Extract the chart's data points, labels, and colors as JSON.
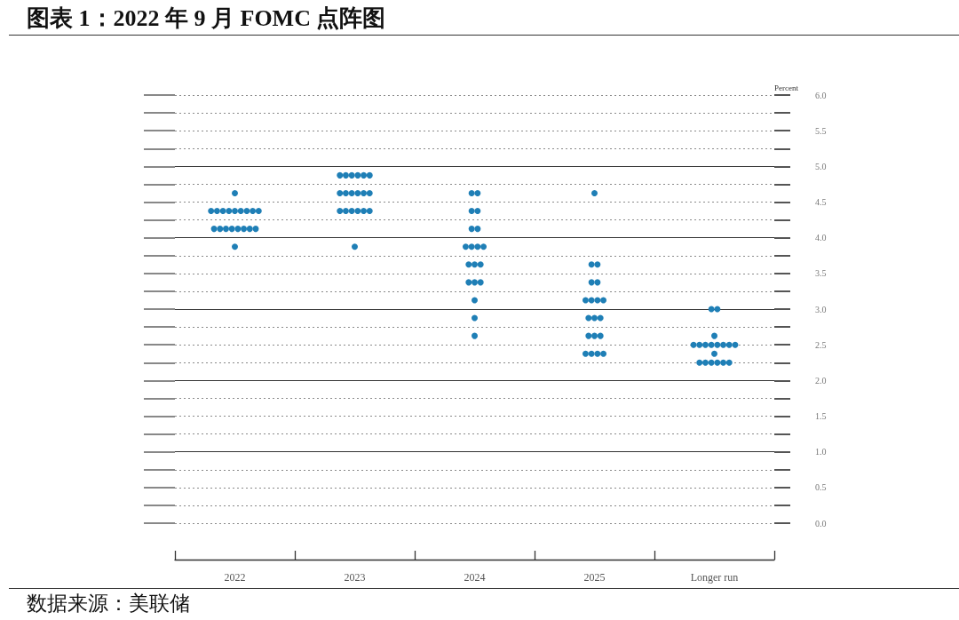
{
  "chart_data": {
    "type": "scatter",
    "title": "图表 1：2022 年 9 月 FOMC 点阵图",
    "ylabel": "Percent",
    "annotations": [
      "数据来源：美联储"
    ],
    "categories": [
      "2022",
      "2023",
      "2024",
      "2025",
      "Longer run"
    ],
    "series": [
      {
        "color": "#1f7fb6",
        "values": [
          4.625,
          4.875,
          4.625,
          4.625,
          3.0
        ]
      },
      {
        "color": "#1f7fb6",
        "values": [
          4.375,
          4.875,
          4.625,
          3.625,
          3.0
        ]
      },
      {
        "color": "#1f7fb6",
        "values": [
          4.375,
          4.875,
          4.375,
          3.625,
          2.625
        ]
      },
      {
        "color": "#1f7fb6",
        "values": [
          4.375,
          4.875,
          4.375,
          3.375,
          2.5
        ]
      },
      {
        "color": "#1f7fb6",
        "values": [
          4.375,
          4.875,
          4.125,
          3.375,
          2.5
        ]
      },
      {
        "color": "#1f7fb6",
        "values": [
          4.375,
          4.875,
          4.125,
          3.125,
          2.5
        ]
      },
      {
        "color": "#1f7fb6",
        "values": [
          4.375,
          4.625,
          3.875,
          3.125,
          2.5
        ]
      },
      {
        "color": "#1f7fb6",
        "values": [
          4.375,
          4.625,
          3.875,
          3.125,
          2.5
        ]
      },
      {
        "color": "#1f7fb6",
        "values": [
          4.375,
          4.625,
          3.875,
          3.125,
          2.5
        ]
      },
      {
        "color": "#1f7fb6",
        "values": [
          4.375,
          4.625,
          3.875,
          2.875,
          2.5
        ]
      },
      {
        "color": "#1f7fb6",
        "values": [
          4.125,
          4.625,
          3.625,
          2.875,
          2.5
        ]
      },
      {
        "color": "#1f7fb6",
        "values": [
          4.125,
          4.625,
          3.625,
          2.875,
          2.375
        ]
      },
      {
        "color": "#1f7fb6",
        "values": [
          4.125,
          4.375,
          3.625,
          2.625,
          2.25
        ]
      },
      {
        "color": "#1f7fb6",
        "values": [
          4.125,
          4.375,
          3.375,
          2.625,
          2.25
        ]
      },
      {
        "color": "#1f7fb6",
        "values": [
          4.125,
          4.375,
          3.375,
          2.625,
          2.25
        ]
      },
      {
        "color": "#1f7fb6",
        "values": [
          4.125,
          4.375,
          3.375,
          2.375,
          2.25
        ]
      },
      {
        "color": "#1f7fb6",
        "values": [
          4.125,
          4.375,
          3.125,
          2.375,
          2.25
        ]
      },
      {
        "color": "#1f7fb6",
        "values": [
          4.125,
          4.375,
          2.875,
          2.375,
          2.25
        ]
      },
      {
        "color": "#1f7fb6",
        "values": [
          3.875,
          3.875,
          2.625,
          2.375,
          null
        ]
      }
    ],
    "ylim": [
      0,
      6
    ],
    "yticks": [
      {
        "value": 0,
        "label": "0.0"
      },
      {
        "value": 0.25,
        "label": null
      },
      {
        "value": 0.5,
        "label": "0.5"
      },
      {
        "value": 0.75,
        "label": null
      },
      {
        "value": 1,
        "label": "1.0"
      },
      {
        "value": 1.25,
        "label": null
      },
      {
        "value": 1.5,
        "label": "1.5"
      },
      {
        "value": 1.75,
        "label": null
      },
      {
        "value": 2,
        "label": "2.0"
      },
      {
        "value": 2.25,
        "label": null
      },
      {
        "value": 2.5,
        "label": "2.5"
      },
      {
        "value": 2.75,
        "label": null
      },
      {
        "value": 3,
        "label": "3.0"
      },
      {
        "value": 3.25,
        "label": null
      },
      {
        "value": 3.5,
        "label": "3.5"
      },
      {
        "value": 3.75,
        "label": null
      },
      {
        "value": 4,
        "label": "4.0"
      },
      {
        "value": 4.25,
        "label": null
      },
      {
        "value": 4.5,
        "label": "4.5"
      },
      {
        "value": 4.75,
        "label": null
      },
      {
        "value": 5,
        "label": "5.0"
      },
      {
        "value": 5.25,
        "label": null
      },
      {
        "value": 5.5,
        "label": "5.5"
      },
      {
        "value": 5.75,
        "label": null
      },
      {
        "value": 6,
        "label": "6.0"
      }
    ],
    "grid": "y",
    "marker": "circle"
  }
}
